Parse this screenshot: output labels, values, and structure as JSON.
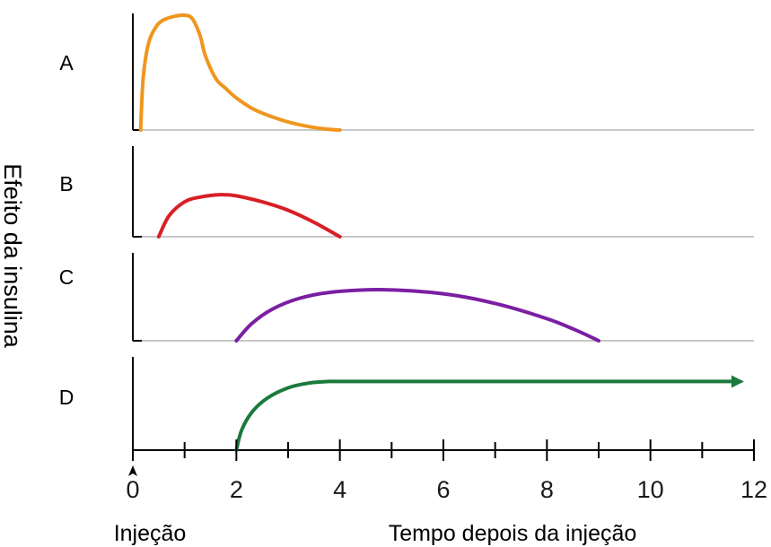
{
  "chart_data": {
    "type": "line",
    "xlabel": "Tempo depois da injeção",
    "ylabel": "Efeito da insulina",
    "x_marker_label": "Injeção",
    "xlim": [
      0,
      12
    ],
    "xticks": [
      0,
      2,
      4,
      6,
      8,
      10,
      12
    ],
    "xtick_minor_step": 1,
    "ylim": [
      0,
      1
    ],
    "grid": false,
    "series": [
      {
        "name": "A",
        "color": "#f0961e",
        "x": [
          0.15,
          0.2,
          0.3,
          0.45,
          0.6,
          0.8,
          1.0,
          1.15,
          1.3,
          1.4,
          1.6,
          1.8,
          2.0,
          2.3,
          2.6,
          3.0,
          3.4,
          3.7,
          4.0
        ],
        "y": [
          0.0,
          0.45,
          0.75,
          0.9,
          0.96,
          0.99,
          1.0,
          0.97,
          0.82,
          0.65,
          0.45,
          0.36,
          0.28,
          0.19,
          0.13,
          0.07,
          0.03,
          0.01,
          0.0
        ]
      },
      {
        "name": "B",
        "color": "#d81f26",
        "x": [
          0.5,
          0.7,
          1.0,
          1.3,
          1.7,
          2.0,
          2.5,
          3.0,
          3.5,
          4.0
        ],
        "y": [
          0.0,
          0.35,
          0.58,
          0.66,
          0.7,
          0.68,
          0.58,
          0.44,
          0.24,
          0.0
        ]
      },
      {
        "name": "C",
        "color": "#7b1fa2",
        "x": [
          2.0,
          2.3,
          2.7,
          3.2,
          3.8,
          4.8,
          6.0,
          7.0,
          8.0,
          8.6,
          9.0
        ],
        "y": [
          0.0,
          0.25,
          0.46,
          0.61,
          0.7,
          0.74,
          0.68,
          0.54,
          0.32,
          0.14,
          0.0
        ]
      },
      {
        "name": "D",
        "color": "#1a7a3c",
        "x": [
          2.0,
          2.1,
          2.3,
          2.6,
          3.0,
          3.4,
          3.8,
          4.0,
          6.0,
          8.0,
          10.0,
          11.6
        ],
        "y": [
          0.0,
          0.25,
          0.48,
          0.66,
          0.79,
          0.85,
          0.87,
          0.87,
          0.87,
          0.87,
          0.87,
          0.87
        ],
        "arrow": true
      }
    ]
  }
}
